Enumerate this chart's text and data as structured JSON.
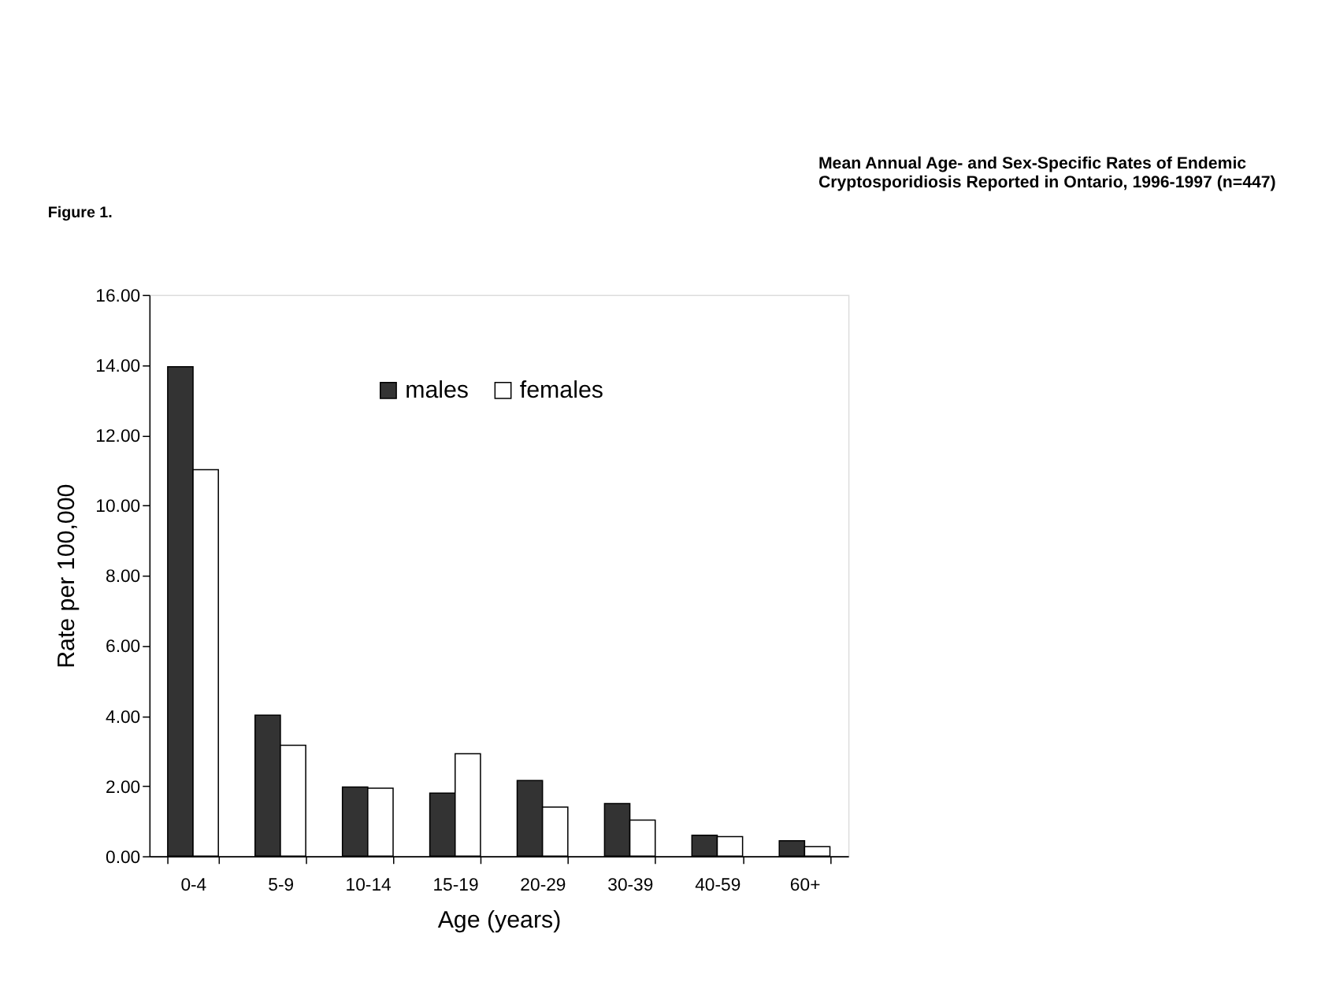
{
  "chart_data": {
    "type": "bar",
    "title": [
      "Mean Annual Age- and Sex-Specific Rates of Endemic",
      "Cryptosporidiosis Reported in Ontario, 1996-1997 (n=447)"
    ],
    "annotations": [
      "Figure 1."
    ],
    "xlabel": "Age (years)",
    "ylabel": "Rate per 100,000",
    "categories": [
      "0-4",
      "5-9",
      "10-14",
      "15-19",
      "20-29",
      "30-39",
      "40-59",
      "60+"
    ],
    "series": [
      {
        "name": "males",
        "color": "#333333",
        "values": [
          13.95,
          4.02,
          1.97,
          1.8,
          2.16,
          1.5,
          0.6,
          0.44
        ]
      },
      {
        "name": "females",
        "color": "#ffffff",
        "values": [
          11.02,
          3.16,
          1.94,
          2.92,
          1.4,
          1.03,
          0.56,
          0.27
        ]
      }
    ],
    "ylim": [
      0,
      16
    ],
    "yticks": [
      {
        "value": 0,
        "label": "0.00"
      },
      {
        "value": 2,
        "label": "2.00"
      },
      {
        "value": 4,
        "label": "4.00"
      },
      {
        "value": 6,
        "label": "6.00"
      },
      {
        "value": 8,
        "label": "8.00"
      },
      {
        "value": 10,
        "label": "10.00"
      },
      {
        "value": 12,
        "label": "12.00"
      },
      {
        "value": 14,
        "label": "14.00"
      },
      {
        "value": 16,
        "label": "16.00"
      }
    ],
    "grid": false,
    "legend": "top"
  }
}
